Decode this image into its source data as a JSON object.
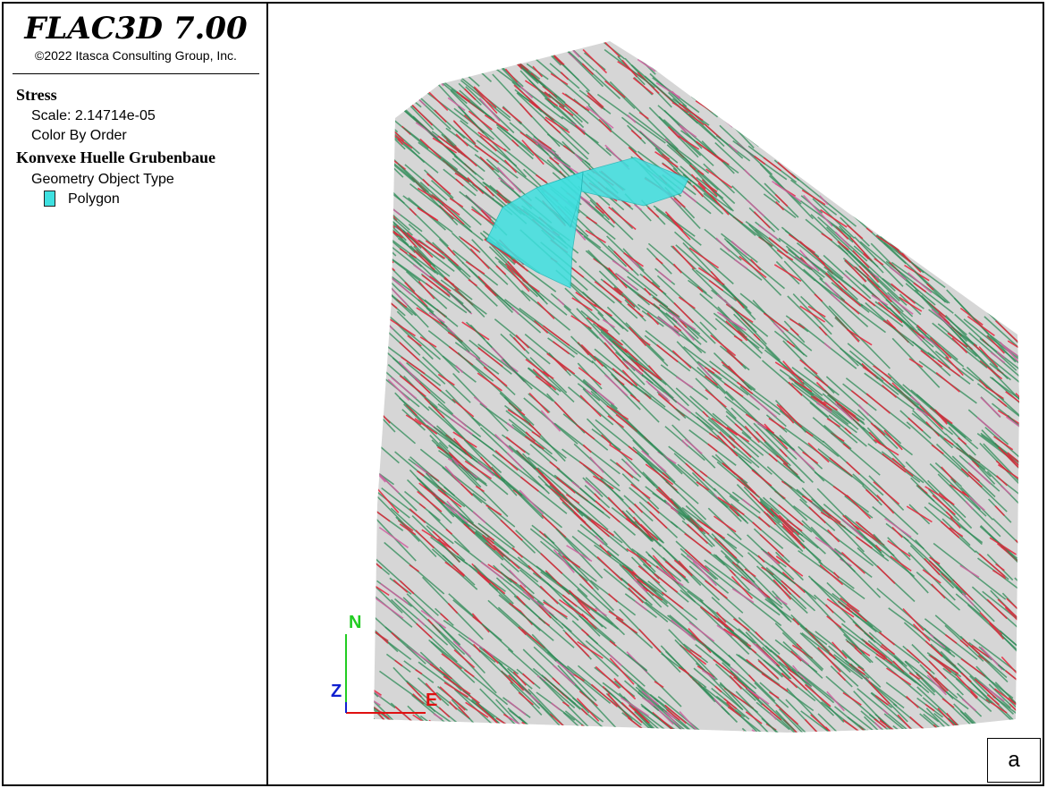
{
  "legend": {
    "app_title": "FLAC3D 7.00",
    "copyright": "©2022 Itasca Consulting Group, Inc.",
    "stress": {
      "heading": "Stress",
      "scale": "Scale: 2.14714e-05",
      "color_by": "Color By Order"
    },
    "geometry": {
      "heading": "Konvexe Huelle Grubenbaue",
      "type_label": "Geometry Object Type",
      "item_label": "Polygon",
      "item_color": "#3ee0e0"
    }
  },
  "viewport": {
    "axes": {
      "north": "N",
      "east": "E",
      "z": "Z"
    },
    "tag": "a",
    "colors": {
      "stress_green": "#2e8b57",
      "stress_red": "#e8233a",
      "stress_pink": "#d05fa0",
      "hull_gray": "#b4b4b4",
      "polygon": "#3ee0e0",
      "axis_north": "#22cc22",
      "axis_east": "#e01010",
      "axis_z": "#1020d0"
    }
  }
}
